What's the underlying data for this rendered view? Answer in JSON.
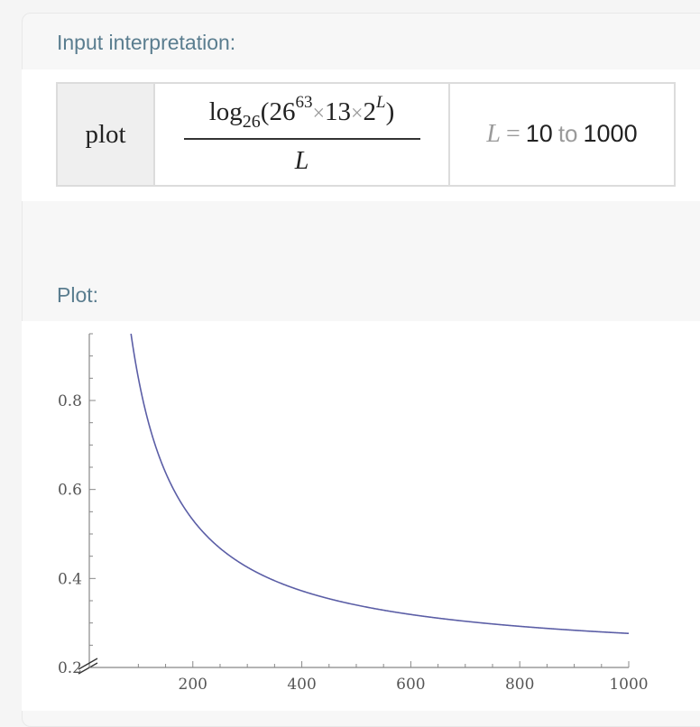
{
  "input_pod": {
    "title": "Input interpretation:",
    "command": "plot",
    "expr": {
      "log_text": "log",
      "log_base": "26",
      "open_paren": "(",
      "base": "26",
      "exponent": "63",
      "times": "×",
      "factor": "13",
      "two": "2",
      "var_exp": "L",
      "close_paren": ")",
      "denominator": "L"
    },
    "range": {
      "variable": "L",
      "equals": "=",
      "start": "10",
      "to": "to",
      "end": "1000"
    }
  },
  "plot_pod": {
    "title": "Plot:"
  },
  "colors": {
    "section_title": "#5a7d8f",
    "curve": "#5b5ea6",
    "axis": "#888888",
    "tick_label": "#555555"
  },
  "chart_data": {
    "type": "line",
    "title": "",
    "xlabel": "",
    "ylabel": "",
    "xlim": [
      10,
      1000
    ],
    "ylim": [
      0.2,
      0.95
    ],
    "x_ticks": [
      200,
      400,
      600,
      800,
      1000
    ],
    "y_ticks": [
      0.2,
      0.4,
      0.6,
      0.8
    ],
    "x_tick_labels": [
      "200",
      "400",
      "600",
      "800",
      "1000"
    ],
    "y_tick_labels": [
      "0.2",
      "0.4",
      "0.6",
      "0.8"
    ],
    "y_axis_break": true,
    "grid": false,
    "series": [
      {
        "function": "(63 + log26(13) + L*log26(2)) / L",
        "x": [
          80,
          100,
          125,
          150,
          200,
          250,
          300,
          400,
          500,
          600,
          700,
          800,
          900,
          1000
        ],
        "values": [
          1.027,
          0.856,
          0.719,
          0.627,
          0.513,
          0.444,
          0.399,
          0.342,
          0.307,
          0.285,
          0.268,
          0.256,
          0.247,
          0.239
        ]
      }
    ]
  }
}
